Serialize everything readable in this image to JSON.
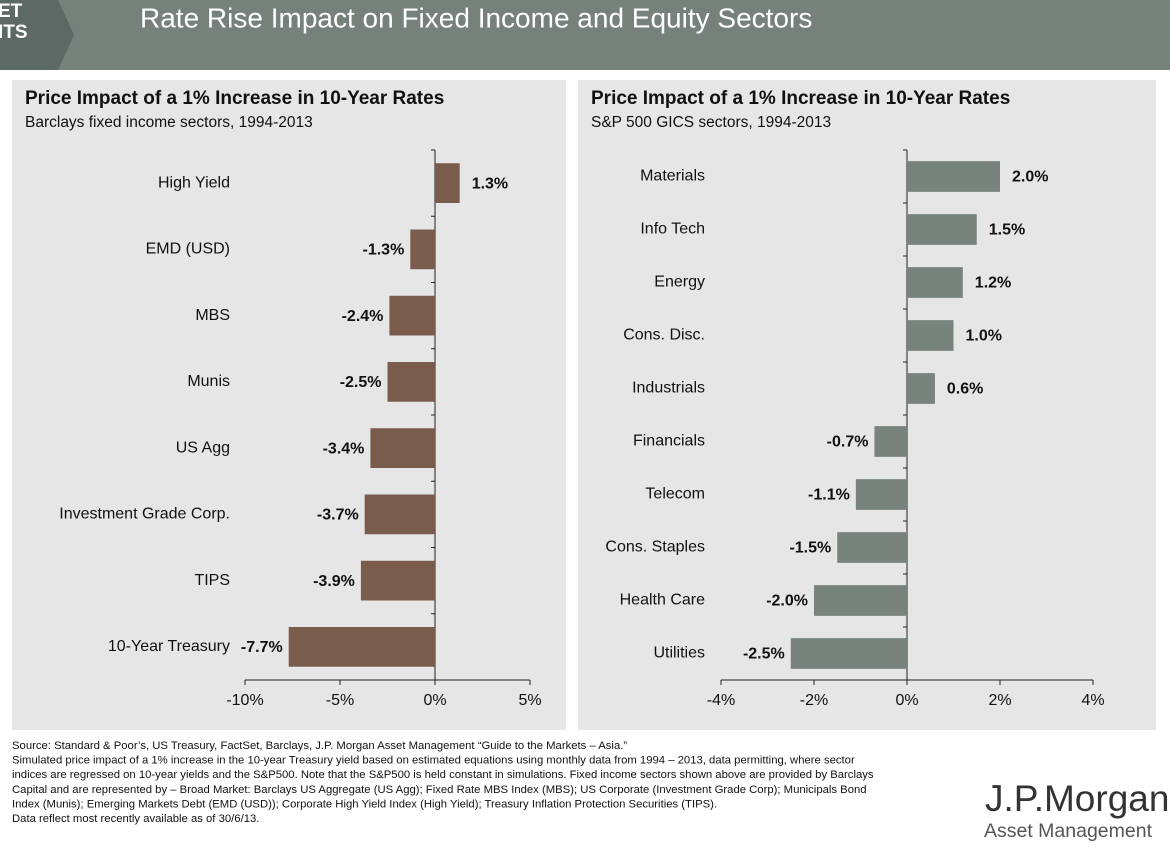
{
  "header": {
    "tab": [
      "ET",
      "ITS"
    ],
    "title": "Rate Rise Impact on Fixed Income and Equity Sectors"
  },
  "chart_data": [
    {
      "type": "bar",
      "orientation": "horizontal",
      "title": "Price Impact of a 1% Increase in 10-Year Rates",
      "subtitle": "Barclays fixed income sectors, 1994-2013",
      "categories": [
        "High Yield",
        "EMD (USD)",
        "MBS",
        "Munis",
        "US Agg",
        "Investment Grade Corp.",
        "TIPS",
        "10-Year Treasury"
      ],
      "values": [
        1.3,
        -1.3,
        -2.4,
        -2.5,
        -3.4,
        -3.7,
        -3.9,
        -7.7
      ],
      "value_labels": [
        "1.3%",
        "-1.3%",
        "-2.4%",
        "-2.5%",
        "-3.4%",
        "-3.7%",
        "-3.9%",
        "-7.7%"
      ],
      "color": "#7a5c4d",
      "xlim": [
        -10,
        5
      ],
      "xticks": [
        {
          "value": -10,
          "label": "-10%"
        },
        {
          "value": -5,
          "label": "-5%"
        },
        {
          "value": 0,
          "label": "0%"
        },
        {
          "value": 5,
          "label": "5%"
        }
      ]
    },
    {
      "type": "bar",
      "orientation": "horizontal",
      "title": "Price Impact of a 1% Increase in 10-Year Rates",
      "subtitle": "S&P 500 GICS sectors, 1994-2013",
      "categories": [
        "Materials",
        "Info Tech",
        "Energy",
        "Cons. Disc.",
        "Industrials",
        "Financials",
        "Telecom",
        "Cons. Staples",
        "Health Care",
        "Utilities"
      ],
      "values": [
        2.0,
        1.5,
        1.2,
        1.0,
        0.6,
        -0.7,
        -1.1,
        -1.5,
        -2.0,
        -2.5
      ],
      "value_labels": [
        "2.0%",
        "1.5%",
        "1.2%",
        "1.0%",
        "0.6%",
        "-0.7%",
        "-1.1%",
        "-1.5%",
        "-2.0%",
        "-2.5%"
      ],
      "color": "#78837e",
      "xlim": [
        -4,
        4
      ],
      "xticks": [
        {
          "value": -4,
          "label": "-4%"
        },
        {
          "value": -2,
          "label": "-2%"
        },
        {
          "value": 0,
          "label": "0%"
        },
        {
          "value": 2,
          "label": "2%"
        },
        {
          "value": 4,
          "label": "4%"
        }
      ]
    }
  ],
  "footer": {
    "notes": [
      "Source: Standard & Poor’s, US Treasury, FactSet, Barclays, J.P. Morgan Asset Management “Guide to the Markets – Asia.”",
      "Simulated price impact of a 1% increase in the 10-year Treasury yield based on estimated equations using monthly data from 1994 – 2013, data permitting, where sector",
      "indices are regressed on 10-year yields and the S&P500.  Note that the S&P500 is held constant in simulations. Fixed income sectors shown above are provided by Barclays",
      "Capital and are represented by – Broad Market: Barclays US Aggregate (US Agg); Fixed Rate MBS Index (MBS); US Corporate (Investment Grade Corp); Municipals Bond",
      "Index (Munis); Emerging Markets Debt (EMD (USD)); Corporate High Yield Index (High Yield); Treasury Inflation Protection Securities (TIPS).",
      "Data reflect most recently available as of 30/6/13."
    ],
    "logo": "J.P.Morgan",
    "logo_sub": "Asset Management"
  }
}
